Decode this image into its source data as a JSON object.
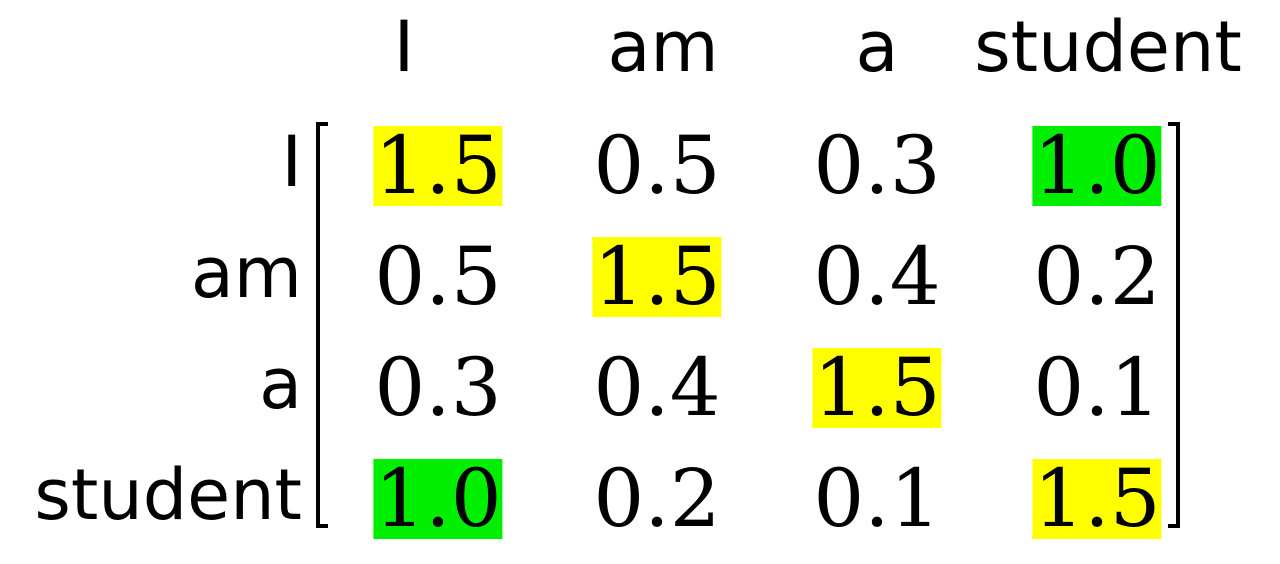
{
  "columns": [
    "I",
    "am",
    "a",
    "student"
  ],
  "rows": [
    "I",
    "am",
    "a",
    "student"
  ],
  "matrix": [
    [
      "1.5",
      "0.5",
      "0.3",
      "1.0"
    ],
    [
      "0.5",
      "1.5",
      "0.4",
      "0.2"
    ],
    [
      "0.3",
      "0.4",
      "1.5",
      "0.1"
    ],
    [
      "1.0",
      "0.2",
      "0.1",
      "1.5"
    ]
  ],
  "highlights": {
    "yellow": "#ffff00",
    "green": "#00ee00",
    "cells": [
      [
        "yellow",
        "",
        "",
        "green"
      ],
      [
        "",
        "yellow",
        "",
        ""
      ],
      [
        "",
        "",
        "yellow",
        ""
      ],
      [
        "green",
        "",
        "",
        "yellow"
      ]
    ]
  }
}
